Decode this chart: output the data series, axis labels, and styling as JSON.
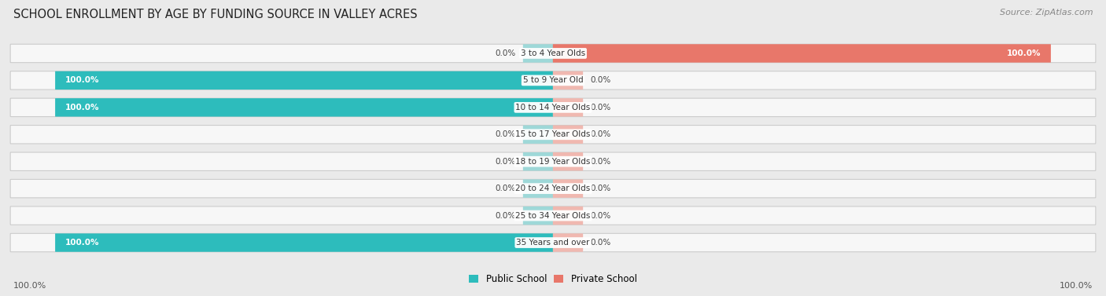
{
  "title": "SCHOOL ENROLLMENT BY AGE BY FUNDING SOURCE IN VALLEY ACRES",
  "source": "Source: ZipAtlas.com",
  "categories": [
    "3 to 4 Year Olds",
    "5 to 9 Year Old",
    "10 to 14 Year Olds",
    "15 to 17 Year Olds",
    "18 to 19 Year Olds",
    "20 to 24 Year Olds",
    "25 to 34 Year Olds",
    "35 Years and over"
  ],
  "public_values": [
    0.0,
    100.0,
    100.0,
    0.0,
    0.0,
    0.0,
    0.0,
    100.0
  ],
  "private_values": [
    100.0,
    0.0,
    0.0,
    0.0,
    0.0,
    0.0,
    0.0,
    0.0
  ],
  "public_color": "#2DBCBC",
  "private_color": "#E8776A",
  "public_color_light": "#9ED8D8",
  "private_color_light": "#F0B8B0",
  "bg_color": "#EAEAEA",
  "bar_bg": "#F7F7F7",
  "bar_border": "#CCCCCC",
  "legend_public": "Public School",
  "legend_private": "Private School",
  "left_axis_label": "100.0%",
  "right_axis_label": "100.0%",
  "stub_size": 6.0,
  "full_size": 100.0
}
